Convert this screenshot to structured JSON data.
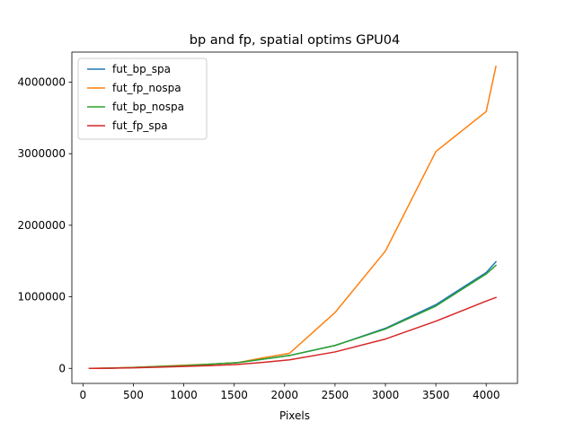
{
  "chart_data": {
    "type": "line",
    "title": "bp and fp, spatial optims GPU04",
    "xlabel": "Pixels",
    "ylabel": "",
    "xlim": [
      -110,
      4310
    ],
    "ylim": [
      -210000,
      4420000
    ],
    "xticks": [
      0,
      500,
      1000,
      1500,
      2000,
      2500,
      3000,
      3500,
      4000
    ],
    "yticks": [
      0,
      1000000,
      2000000,
      3000000,
      4000000
    ],
    "legend_position": "top-left",
    "grid": false,
    "series": [
      {
        "name": "fut_bp_spa",
        "color": "#1f77b4",
        "x": [
          64,
          128,
          256,
          512,
          768,
          1024,
          1280,
          1536,
          1792,
          2048,
          2500,
          3000,
          3500,
          4000,
          4096
        ],
        "y": [
          200,
          800,
          3000,
          12000,
          27000,
          40000,
          60000,
          80000,
          130000,
          180000,
          320000,
          560000,
          890000,
          1340000,
          1490000
        ]
      },
      {
        "name": "fut_fp_nospa",
        "color": "#ff7f0e",
        "x": [
          64,
          128,
          256,
          512,
          768,
          1024,
          1280,
          1536,
          1792,
          2048,
          2500,
          3000,
          3500,
          4000,
          4096
        ],
        "y": [
          300,
          1000,
          4000,
          15000,
          30000,
          45000,
          60000,
          80000,
          150000,
          210000,
          780000,
          1640000,
          3030000,
          3590000,
          4220000
        ]
      },
      {
        "name": "fut_bp_nospa",
        "color": "#2ca02c",
        "x": [
          64,
          128,
          256,
          512,
          768,
          1024,
          1280,
          1536,
          1792,
          2048,
          2500,
          3000,
          3500,
          4000,
          4096
        ],
        "y": [
          200,
          800,
          3000,
          12000,
          27000,
          40000,
          60000,
          80000,
          130000,
          180000,
          320000,
          550000,
          870000,
          1320000,
          1440000
        ]
      },
      {
        "name": "fut_fp_spa",
        "color": "#d62728",
        "x": [
          64,
          128,
          256,
          512,
          768,
          1024,
          1280,
          1536,
          1792,
          2048,
          2500,
          3000,
          3500,
          4000,
          4096
        ],
        "y": [
          100,
          500,
          2000,
          8000,
          18000,
          28000,
          40000,
          55000,
          85000,
          120000,
          230000,
          410000,
          660000,
          940000,
          990000
        ]
      }
    ]
  }
}
